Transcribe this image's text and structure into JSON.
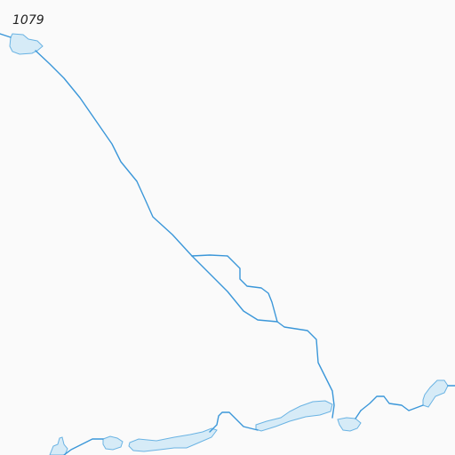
{
  "map": {
    "elevation_label": "1079",
    "colors": {
      "background": "#fafafa",
      "river_stroke": "#3b97d9",
      "lake_fill": "#d6ebf7",
      "lake_stroke": "#6ab3e3",
      "label_text": "#222222"
    }
  }
}
